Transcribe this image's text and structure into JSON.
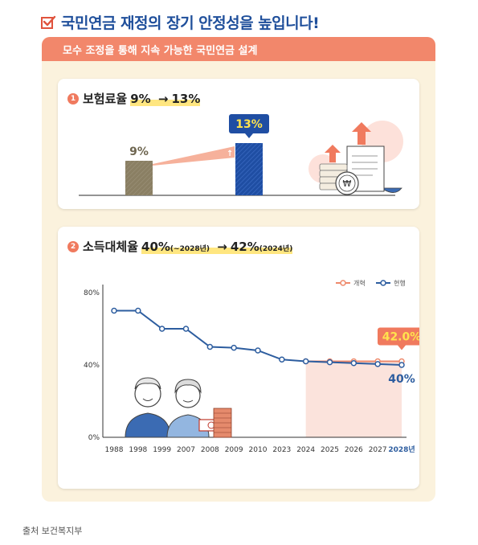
{
  "page": {
    "title": "국민연금 재정의 장기 안정성을 높입니다!",
    "header": "모수 조정을 통해 지속 가능한 국민연금 설계",
    "source": "출처 보건복지부"
  },
  "section1": {
    "number": "1",
    "label": "보험료율",
    "from": "9%",
    "arrow": "→",
    "to": "13%",
    "bar_before_label": "9%",
    "bar_after_label": "13%",
    "colors": {
      "before": "#8a7f63",
      "after": "#1f4ea3",
      "callout": "#1f4ea3",
      "callout_text": "#ffe34d"
    }
  },
  "section2": {
    "number": "2",
    "label": "소득대체율",
    "from": "40%",
    "from_note": "(~2028년)",
    "arrow": "→",
    "to": "42%",
    "to_note": "(2024년)"
  },
  "chart_data": {
    "type": "line",
    "x": [
      "1988",
      "1998",
      "1999",
      "2007",
      "2008",
      "2009",
      "2010",
      "2023",
      "2024",
      "2025",
      "2026",
      "2027",
      "2028년"
    ],
    "ylim": [
      0,
      80
    ],
    "yticks": [
      "0%",
      "40%",
      "80%"
    ],
    "legend_position": "top-right",
    "series": [
      {
        "name": "개혁",
        "color": "#ee8a6c",
        "values": [
          null,
          null,
          null,
          null,
          null,
          null,
          null,
          null,
          42,
          42,
          42,
          42,
          42
        ]
      },
      {
        "name": "현행",
        "color": "#2d5d9f",
        "values": [
          70,
          70,
          60,
          60,
          50,
          49.5,
          48,
          43,
          42,
          41.5,
          41,
          40.5,
          40
        ]
      }
    ],
    "annotations": {
      "reform_label": "42.0%",
      "current_label": "40%"
    },
    "highlight_x": "2028년",
    "shaded_range": [
      "2024",
      "2028년"
    ]
  }
}
